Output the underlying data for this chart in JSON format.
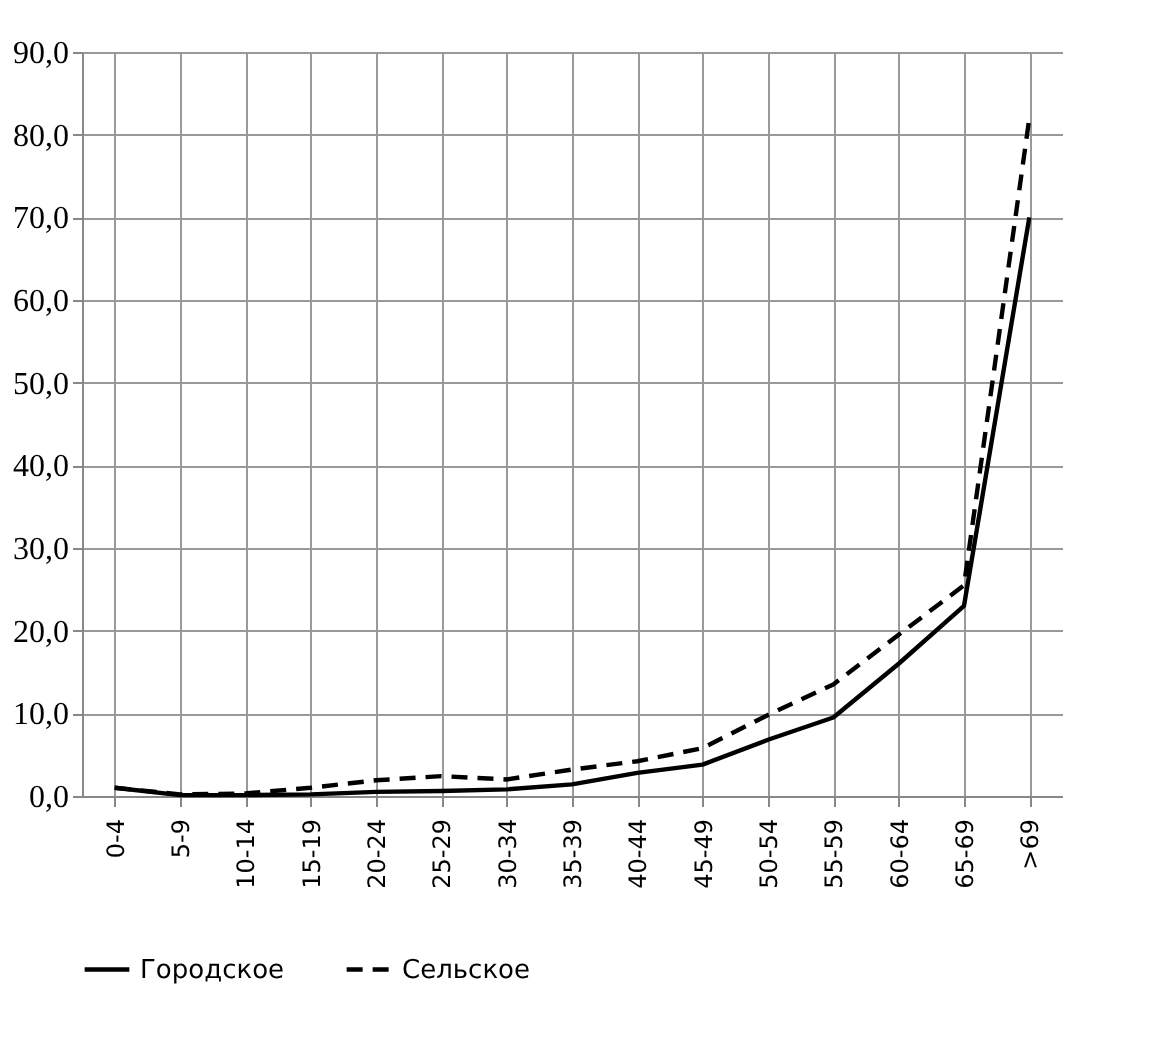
{
  "chart_data": {
    "type": "line",
    "categories": [
      "0-4",
      "5-9",
      "10-14",
      "15-19",
      "20-24",
      "25-29",
      "30-34",
      "35-39",
      "40-44",
      "45-49",
      "50-54",
      "55-59",
      "60-64",
      "65-69",
      ">69"
    ],
    "series": [
      {
        "name": "Городское",
        "color": "#000000",
        "line_style": "solid",
        "values": [
          1.0,
          0.1,
          0.1,
          0.2,
          0.5,
          0.6,
          0.8,
          1.4,
          2.8,
          3.8,
          6.8,
          9.5,
          16,
          23,
          70
        ]
      },
      {
        "name": "Сельское",
        "color": "#000000",
        "line_style": "dashed",
        "values": [
          1.0,
          0.2,
          0.3,
          1.0,
          1.9,
          2.4,
          2.0,
          3.2,
          4.2,
          5.8,
          9.8,
          13.5,
          19.5,
          25.5,
          82
        ]
      }
    ],
    "ylim": [
      0,
      90
    ],
    "yticks": [
      {
        "value": 0,
        "label": "0,0"
      },
      {
        "value": 10,
        "label": "10,0"
      },
      {
        "value": 20,
        "label": "20,0"
      },
      {
        "value": 30,
        "label": "30,0"
      },
      {
        "value": 40,
        "label": "40,0"
      },
      {
        "value": 50,
        "label": "50,0"
      },
      {
        "value": 60,
        "label": "60,0"
      },
      {
        "value": 70,
        "label": "70,0"
      },
      {
        "value": 80,
        "label": "80,0"
      },
      {
        "value": 90,
        "label": "90,0"
      }
    ],
    "grid": true,
    "legend": "bottom",
    "marker": "none"
  }
}
